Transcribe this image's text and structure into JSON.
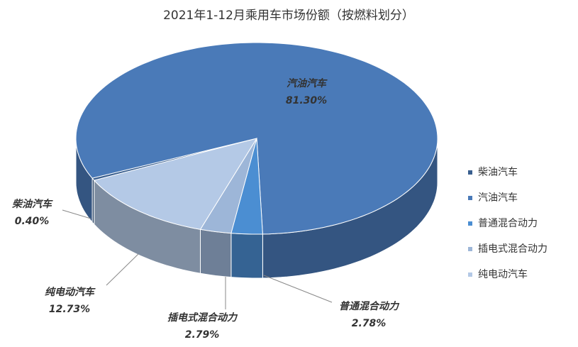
{
  "chart_data": {
    "type": "pie",
    "title": "2021年1-12月乘用车市场份额（按燃料划分）",
    "categories": [
      "柴油汽车",
      "汽油汽车",
      "普通混合动力",
      "插电式混合动力",
      "纯电动汽车"
    ],
    "values": [
      0.4,
      81.3,
      2.78,
      2.79,
      12.73
    ],
    "value_labels": [
      "0.40%",
      "81.30%",
      "2.78%",
      "2.79%",
      "12.73%"
    ],
    "colors": [
      "#3a5f8f",
      "#4a7ab8",
      "#4b8ed2",
      "#9db6d8",
      "#b4c9e6"
    ],
    "legend": "right"
  }
}
